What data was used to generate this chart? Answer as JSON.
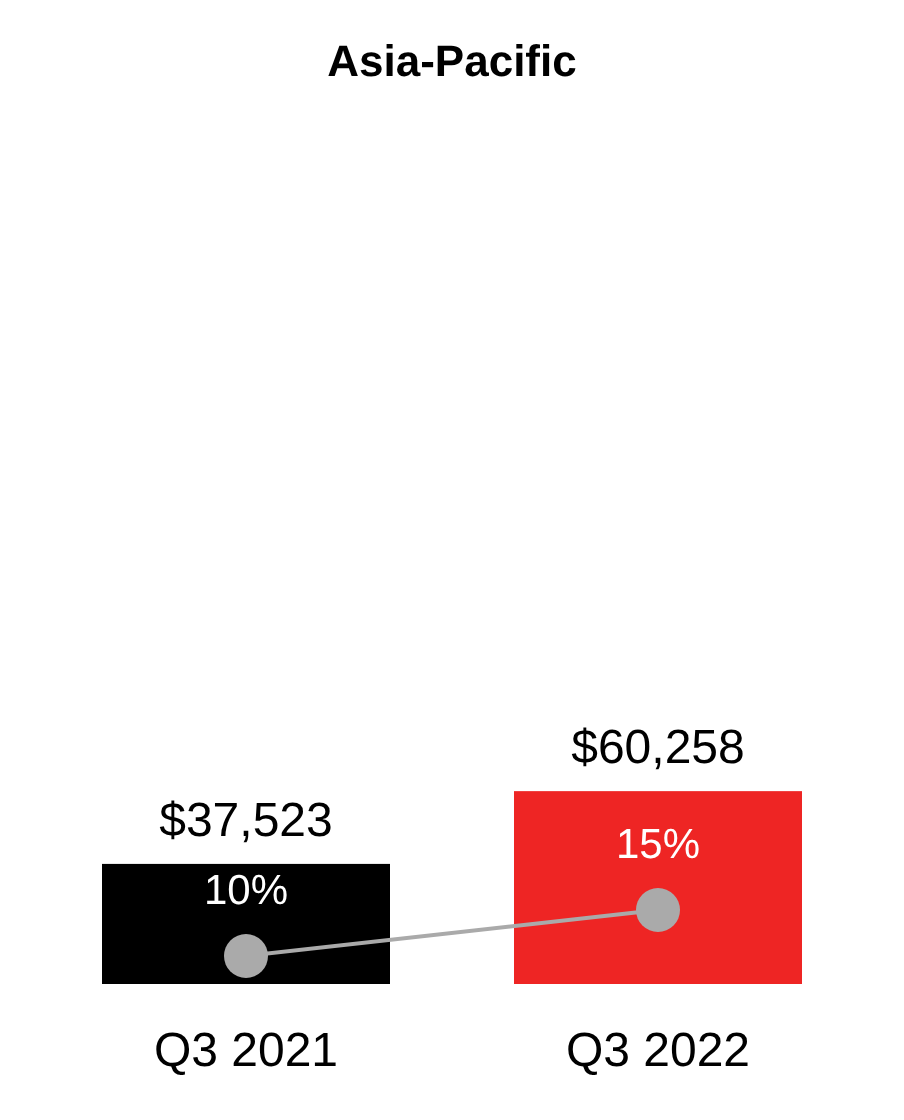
{
  "chart_data": {
    "type": "bar",
    "title": "Asia-Pacific",
    "categories": [
      "Q3 2021",
      "Q3 2022"
    ],
    "tick_labels": "x",
    "series": [
      {
        "colors": [
          "#000000",
          "#ee2524"
        ],
        "values": [
          37523,
          60258
        ],
        "value_labels": [
          "$37,523",
          "$60,258"
        ]
      },
      {
        "type": "line",
        "axis": "y2",
        "color": "#aaaaaa",
        "marker": "circle",
        "values": [
          10,
          15
        ],
        "value_labels": [
          "10%",
          "15%"
        ]
      }
    ]
  }
}
